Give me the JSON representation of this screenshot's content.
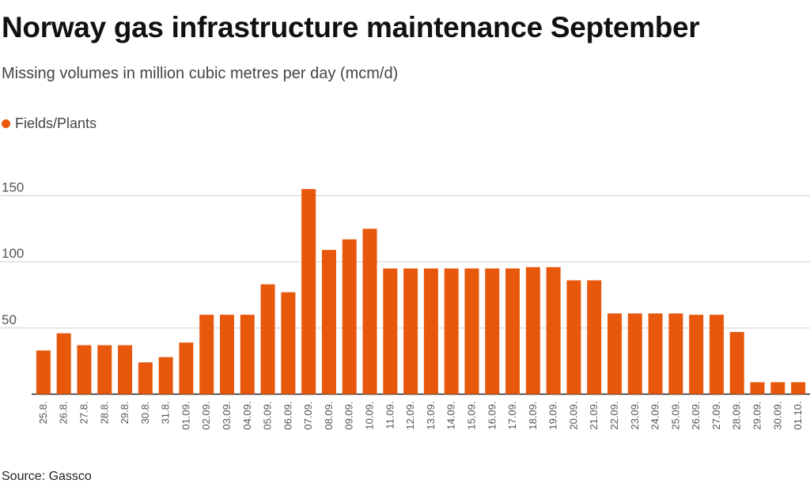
{
  "chart_data": {
    "type": "bar",
    "title": "Norway gas infrastructure maintenance September",
    "subtitle": "Missing volumes in million cubic metres per day (mcm/d)",
    "source": "Source: Gassco",
    "legend_position": "top-left",
    "grid": true,
    "ylim": [
      0,
      160
    ],
    "yticks": [
      50,
      100,
      150
    ],
    "bar_color": "#e8580c",
    "categories": [
      "25.8.",
      "26.8.",
      "27.8.",
      "28.8.",
      "29.8.",
      "30.8.",
      "31.8.",
      "01.09.",
      "02.09.",
      "03.09.",
      "04.09.",
      "05.09.",
      "06.09.",
      "07.09.",
      "08.09.",
      "09.09.",
      "10.09.",
      "11.09.",
      "12.09.",
      "13.09.",
      "14.09.",
      "15.09.",
      "16.09.",
      "17.09.",
      "18.09.",
      "19.09.",
      "20.09.",
      "21.09.",
      "22.09.",
      "23.09.",
      "24.09.",
      "25.09.",
      "26.09.",
      "27.09.",
      "28.09.",
      "29.09.",
      "30.09.",
      "01.10."
    ],
    "series": [
      {
        "name": "Fields/Plants",
        "values": [
          33,
          46,
          37,
          37,
          37,
          24,
          28,
          39,
          60,
          60,
          60,
          83,
          77,
          155,
          109,
          117,
          125,
          95,
          95,
          95,
          95,
          95,
          95,
          95,
          96,
          96,
          86,
          86,
          61,
          61,
          61,
          61,
          60,
          60,
          47,
          9,
          9,
          9
        ]
      }
    ]
  }
}
